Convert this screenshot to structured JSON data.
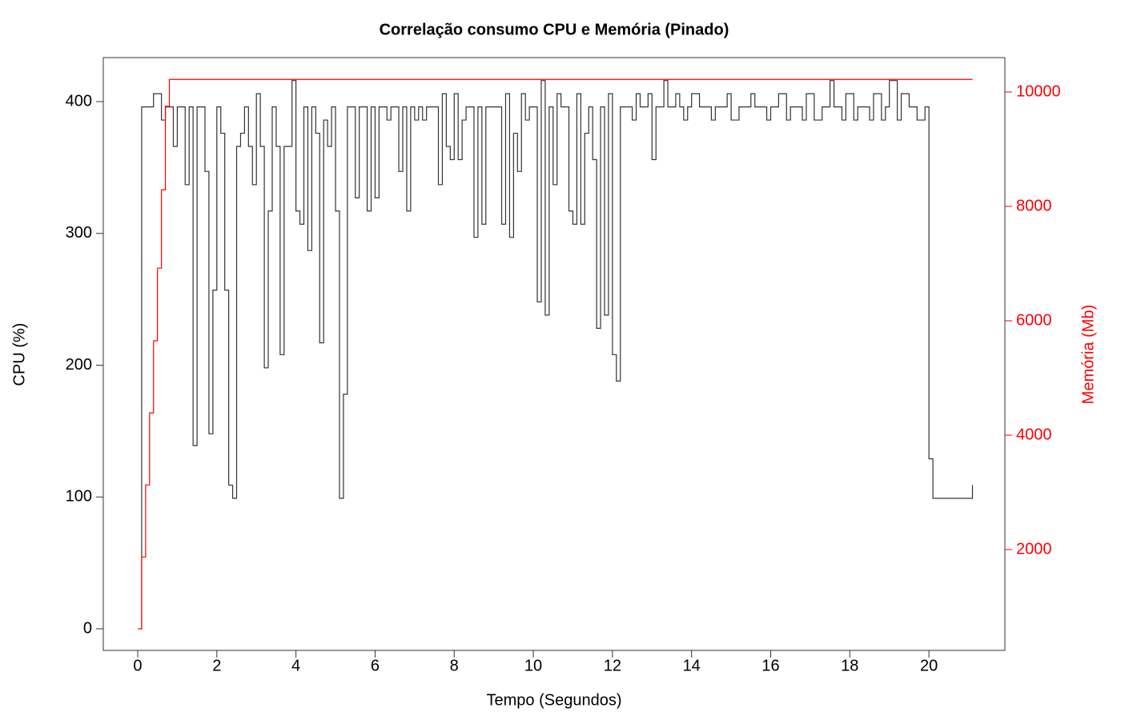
{
  "chart_data": {
    "type": "line",
    "title": "Correlação consumo CPU e Memória (Pinado)",
    "x_label": "Tempo (Segundos)",
    "y_label": "CPU (%)",
    "y2_label": "Memória (Mb)",
    "y2_color": "#ff0000",
    "xlim": [
      -0.87,
      21.92
    ],
    "xticks": [
      0,
      2,
      4,
      6,
      8,
      10,
      12,
      14,
      16,
      18,
      20
    ],
    "ylim": [
      -16.4,
      433.4
    ],
    "yticks": [
      0,
      100,
      200,
      300,
      400
    ],
    "y2lim": [
      238,
      10601
    ],
    "y2ticks": [
      2000,
      4000,
      6000,
      8000,
      10000
    ],
    "series": [
      {
        "color": "#333333",
        "x": [
          0.05,
          0.1,
          0.4,
          0.6,
          0.7,
          0.9,
          1.0,
          1.2,
          1.3,
          1.4,
          1.5,
          1.7,
          1.8,
          1.9,
          2.0,
          2.1,
          2.2,
          2.3,
          2.4,
          2.5,
          2.6,
          2.7,
          2.8,
          2.9,
          3.0,
          3.1,
          3.2,
          3.3,
          3.4,
          3.5,
          3.6,
          3.7,
          3.9,
          4.0,
          4.1,
          4.2,
          4.3,
          4.4,
          4.5,
          4.6,
          4.7,
          4.8,
          4.9,
          5.0,
          5.1,
          5.2,
          5.3,
          5.5,
          5.6,
          5.8,
          5.9,
          6.0,
          6.1,
          6.3,
          6.4,
          6.6,
          6.7,
          6.8,
          6.9,
          7.0,
          7.1,
          7.2,
          7.3,
          7.6,
          7.7,
          7.8,
          7.9,
          8.0,
          8.1,
          8.2,
          8.3,
          8.5,
          8.6,
          8.7,
          8.8,
          9.2,
          9.3,
          9.4,
          9.5,
          9.6,
          9.7,
          9.8,
          9.9,
          10.1,
          10.2,
          10.3,
          10.4,
          10.5,
          10.6,
          10.7,
          10.9,
          11.0,
          11.1,
          11.2,
          11.3,
          11.4,
          11.5,
          11.6,
          11.7,
          11.8,
          11.9,
          12.0,
          12.1,
          12.2,
          12.5,
          12.6,
          12.7,
          12.9,
          13.0,
          13.1,
          13.3,
          13.4,
          13.6,
          13.7,
          13.8,
          13.9,
          14.0,
          14.2,
          14.5,
          14.6,
          14.9,
          15.0,
          15.2,
          15.5,
          15.6,
          15.9,
          16.0,
          16.2,
          16.4,
          16.5,
          16.8,
          16.9,
          17.1,
          17.3,
          17.5,
          17.6,
          17.8,
          17.9,
          18.1,
          18.2,
          18.5,
          18.6,
          18.8,
          18.9,
          19.0,
          19.2,
          19.3,
          19.5,
          19.7,
          19.9,
          20.0,
          20.1,
          21.05,
          21.1
        ],
        "values": [
          0,
          396,
          406,
          386,
          396,
          366,
          396,
          337,
          396,
          139,
          396,
          347,
          148,
          257,
          396,
          376,
          257,
          109,
          99,
          366,
          376,
          396,
          366,
          337,
          406,
          366,
          198,
          317,
          396,
          366,
          208,
          366,
          416,
          317,
          307,
          396,
          287,
          396,
          376,
          217,
          386,
          366,
          396,
          317,
          99,
          178,
          396,
          327,
          396,
          317,
          396,
          327,
          396,
          386,
          396,
          347,
          396,
          317,
          396,
          386,
          396,
          386,
          396,
          337,
          406,
          366,
          356,
          406,
          356,
          386,
          396,
          297,
          396,
          307,
          396,
          307,
          406,
          297,
          376,
          347,
          406,
          386,
          396,
          248,
          416,
          238,
          396,
          337,
          406,
          396,
          317,
          307,
          406,
          307,
          376,
          396,
          356,
          228,
          396,
          238,
          406,
          208,
          188,
          396,
          386,
          406,
          396,
          406,
          356,
          396,
          416,
          396,
          406,
          396,
          386,
          396,
          406,
          396,
          386,
          396,
          406,
          386,
          396,
          406,
          396,
          386,
          396,
          406,
          386,
          396,
          386,
          406,
          386,
          396,
          416,
          396,
          386,
          406,
          386,
          396,
          386,
          406,
          386,
          396,
          416,
          386,
          406,
          396,
          386,
          396,
          129,
          99,
          99,
          109
        ]
      },
      {
        "color": "#ff0000",
        "axis": "y2",
        "x": [
          0,
          0.1,
          0.2,
          0.3,
          0.4,
          0.5,
          0.6,
          0.7,
          0.8,
          21.1
        ],
        "values": [
          615,
          1870,
          3130,
          4390,
          5650,
          6920,
          8290,
          9750,
          10220,
          10220
        ]
      }
    ]
  }
}
